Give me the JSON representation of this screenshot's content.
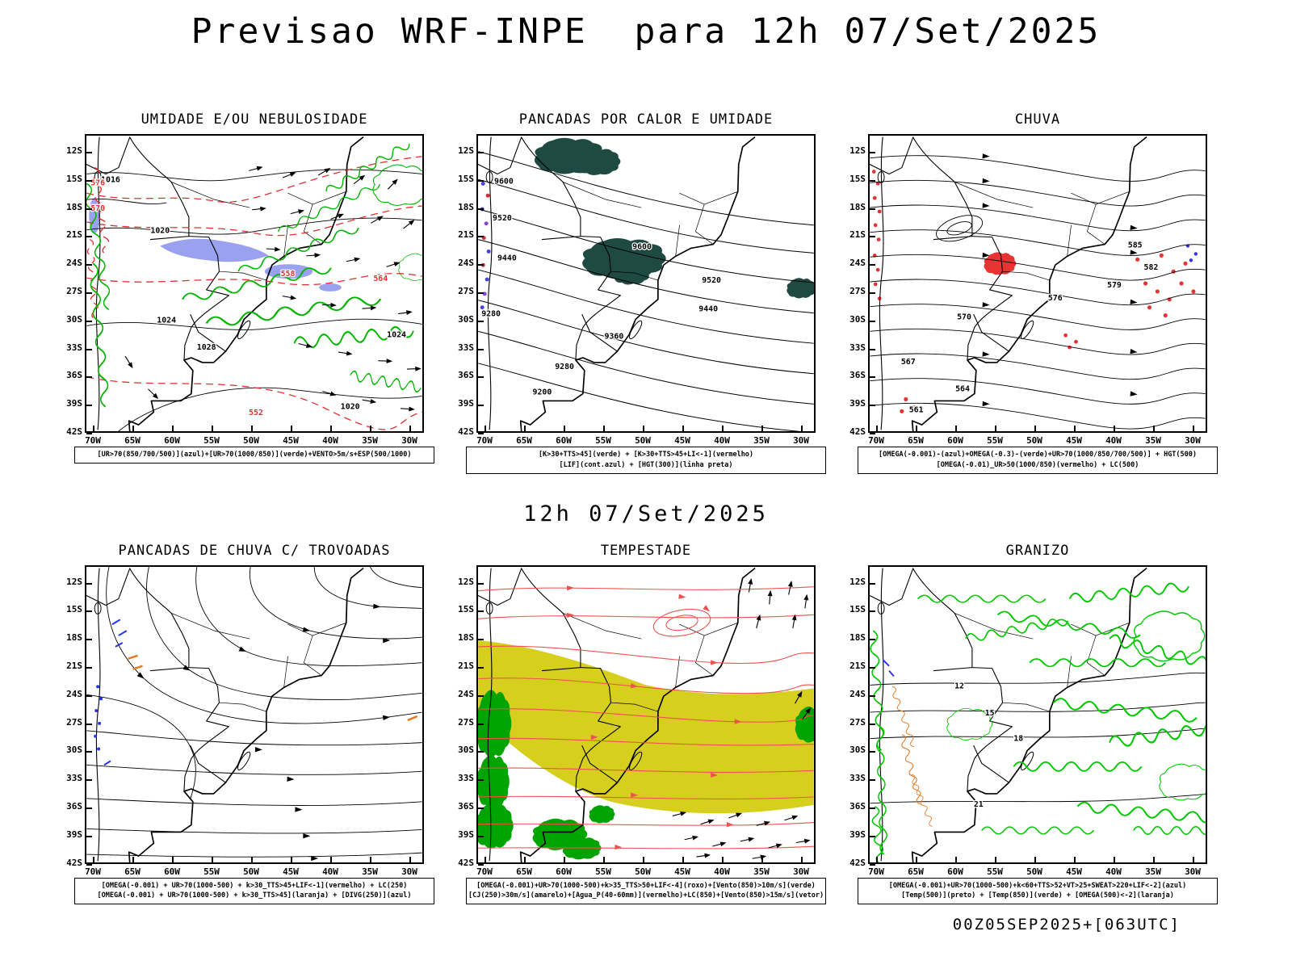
{
  "page": {
    "title": "Previsao WRF-INPE  para 12h 07/Set/2025",
    "mid_heading": "12h 07/Set/2025",
    "footer": "00Z05SEP2025+[063UTC]"
  },
  "axes": {
    "lat": [
      "12S",
      "15S",
      "18S",
      "21S",
      "24S",
      "27S",
      "30S",
      "33S",
      "36S",
      "39S",
      "42S"
    ],
    "lon": [
      "70W",
      "65W",
      "60W",
      "55W",
      "50W",
      "45W",
      "40W",
      "35W",
      "30W"
    ]
  },
  "colors": {
    "green_contour": "#00b400",
    "red_contour": "#e03030",
    "blue_shade": "#9aa2f0",
    "teal_fill": "#1f4a42",
    "red_fill": "#e83333",
    "yellow_fill": "#d6cf1e",
    "orange_mark": "#e87820",
    "blue_mark": "#3333ee",
    "storm_line_red": "#f05050"
  },
  "panels": [
    {
      "id": "umidade",
      "title": "UMIDADE E/OU NEBULOSIDADE",
      "caption": [
        "[UR>70(850/700/500)](azul)+[UR>70(1000/850)](verde)+VENTO>5m/s+ESP(500/1000)"
      ],
      "labels": [
        "1016",
        "1020",
        "1020",
        "1024",
        "1024",
        "1028",
        "576",
        "570",
        "564",
        "558",
        "552"
      ]
    },
    {
      "id": "pancadas-calor",
      "title": "PANCADAS POR CALOR E UMIDADE",
      "caption": [
        "[K>30+TTS>45](verde) + [K>30+TTS>45+LI<-1](vermelho)",
        "[LIF](cont.azul) + [HGT(300)](linha preta)"
      ],
      "labels": [
        "9600",
        "9600",
        "9520",
        "9520",
        "9440",
        "9440",
        "9360",
        "9280",
        "9280",
        "9200"
      ]
    },
    {
      "id": "chuva",
      "title": "CHUVA",
      "caption": [
        "[OMEGA(-0.001)-(azul)+OMEGA(-0.3)-(verde)+UR>70(1000/850/700/500)] + HGT(500)",
        "[OMEGA(-0.01)_UR>50(1000/850)(vermelho) + LC(500)"
      ],
      "labels": [
        "585",
        "582",
        "579",
        "576",
        "570",
        "567",
        "564",
        "561"
      ]
    },
    {
      "id": "trovoadas",
      "title": "PANCADAS DE CHUVA C/ TROVOADAS",
      "caption": [
        "[OMEGA(-0.001) + UR>70(1000-500) + k>30_TTS>45+LIF<-1](vermelho) + LC(250)",
        "[OMEGA(-0.001) + UR>70(1000-500) + k>30_TTS>45](laranja) + [DIVG(250)](azul)"
      ],
      "labels": []
    },
    {
      "id": "tempestade",
      "title": "TEMPESTADE",
      "caption": [
        "[OMEGA(-0.001)+UR>70(1000-500)+k>35_TTS>50+LIF<-4](roxo)+[Vento(850)>10m/s](verde)",
        "[CJ(250)>30m/s](amarelo)+[Agua_P(40-60mm)](vermelho)+LC(850)+[Vento(850)>15m/s](vetor)"
      ],
      "labels": []
    },
    {
      "id": "granizo",
      "title": "GRANIZO",
      "caption": [
        "[OMEGA(-0.001)+UR>70(1000-500)+k<60+TTS>52+VT>25+SWEAT>220+LIF<-2](azul)",
        "[Temp(500)](preto) + [Temp(850)](verde) + [OMEGA(500)<-2](laranja)"
      ],
      "labels": [
        "12",
        "15",
        "18",
        "21"
      ]
    }
  ]
}
